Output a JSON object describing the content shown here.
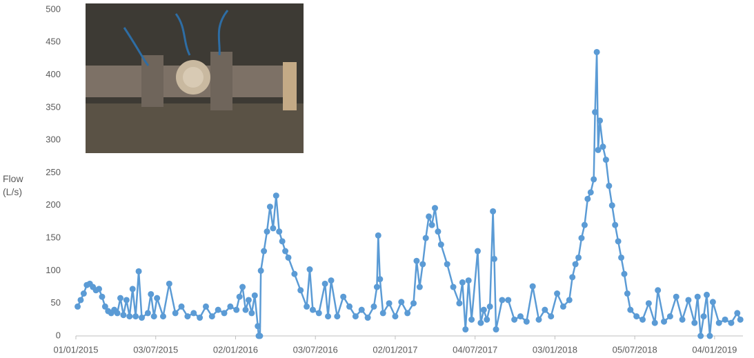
{
  "chart_data": {
    "type": "line",
    "ylabel": "Flow (L/s)",
    "color": "#5b9bd5",
    "x": [
      "05/01/2015",
      "12/01/2015",
      "19/01/2015",
      "26/01/2015",
      "02/02/2015",
      "09/02/2015",
      "16/02/2015",
      "23/02/2015",
      "02/03/2015",
      "09/03/2015",
      "16/03/2015",
      "23/03/2015",
      "30/03/2015",
      "06/04/2015",
      "13/04/2015",
      "20/04/2015",
      "27/04/2015",
      "04/05/2015",
      "11/05/2015",
      "18/05/2015",
      "25/05/2015",
      "01/06/2015",
      "15/06/2015",
      "22/06/2015",
      "29/06/2015",
      "06/07/2015",
      "20/07/2015",
      "03/08/2015",
      "17/08/2015",
      "31/08/2015",
      "14/09/2015",
      "28/09/2015",
      "12/10/2015",
      "26/10/2015",
      "09/11/2015",
      "23/11/2015",
      "07/12/2015",
      "21/12/2015",
      "04/01/2016",
      "11/01/2016",
      "18/01/2016",
      "25/01/2016",
      "01/02/2016",
      "08/02/2016",
      "15/02/2016",
      "22/02/2016",
      "24/02/2016",
      "27/02/2016",
      "29/02/2016",
      "07/03/2016",
      "14/03/2016",
      "21/03/2016",
      "28/03/2016",
      "04/04/2016",
      "11/04/2016",
      "18/04/2016",
      "25/04/2016",
      "02/05/2016",
      "16/05/2016",
      "30/05/2016",
      "13/06/2016",
      "20/06/2016",
      "27/06/2016",
      "11/07/2016",
      "25/07/2016",
      "01/08/2016",
      "08/08/2016",
      "22/08/2016",
      "05/09/2016",
      "19/09/2016",
      "03/10/2016",
      "17/10/2016",
      "31/10/2016",
      "14/11/2016",
      "21/11/2016",
      "24/11/2016",
      "28/11/2016",
      "05/12/2016",
      "19/12/2016",
      "02/01/2017",
      "16/01/2017",
      "30/01/2017",
      "13/02/2017",
      "20/02/2017",
      "27/02/2017",
      "06/03/2017",
      "13/03/2017",
      "20/03/2017",
      "27/03/2017",
      "03/04/2017",
      "10/04/2017",
      "17/04/2017",
      "01/05/2017",
      "15/05/2017",
      "29/05/2017",
      "05/06/2017",
      "12/06/2017",
      "19/06/2017",
      "26/06/2017",
      "10/07/2017",
      "17/07/2017",
      "24/07/2017",
      "31/07/2017",
      "07/08/2017",
      "14/08/2017",
      "17/08/2017",
      "21/08/2017",
      "04/09/2017",
      "18/09/2017",
      "02/10/2017",
      "16/10/2017",
      "30/10/2017",
      "13/11/2017",
      "27/11/2017",
      "11/12/2017",
      "25/12/2017",
      "08/01/2018",
      "22/01/2018",
      "05/02/2018",
      "12/02/2018",
      "19/02/2018",
      "26/02/2018",
      "05/03/2018",
      "12/03/2018",
      "19/03/2018",
      "26/03/2018",
      "02/04/2018",
      "05/04/2018",
      "09/04/2018",
      "12/04/2018",
      "16/04/2018",
      "23/04/2018",
      "30/04/2018",
      "07/05/2018",
      "14/05/2018",
      "21/05/2018",
      "28/05/2018",
      "04/06/2018",
      "11/06/2018",
      "18/06/2018",
      "25/06/2018",
      "09/07/2018",
      "23/07/2018",
      "06/08/2018",
      "20/08/2018",
      "27/08/2018",
      "10/09/2018",
      "24/09/2018",
      "08/10/2018",
      "22/10/2018",
      "05/11/2018",
      "19/11/2018",
      "26/11/2018",
      "03/12/2018",
      "10/12/2018",
      "17/12/2018",
      "24/12/2018",
      "31/12/2018",
      "14/01/2019",
      "28/01/2019",
      "11/02/2019",
      "25/02/2019",
      "04/03/2019"
    ],
    "values": [
      45,
      55,
      65,
      78,
      80,
      75,
      70,
      72,
      60,
      45,
      38,
      35,
      40,
      35,
      58,
      32,
      55,
      30,
      72,
      30,
      99,
      28,
      35,
      64,
      30,
      58,
      30,
      80,
      35,
      45,
      30,
      35,
      28,
      45,
      30,
      40,
      35,
      45,
      40,
      60,
      75,
      40,
      55,
      35,
      62,
      15,
      0,
      0,
      100,
      130,
      160,
      198,
      165,
      215,
      160,
      145,
      130,
      120,
      95,
      70,
      45,
      102,
      40,
      35,
      80,
      30,
      85,
      30,
      60,
      45,
      30,
      40,
      28,
      45,
      75,
      154,
      87,
      35,
      50,
      30,
      52,
      35,
      50,
      115,
      75,
      110,
      150,
      183,
      170,
      196,
      160,
      140,
      110,
      75,
      50,
      82,
      10,
      85,
      25,
      130,
      20,
      40,
      25,
      45,
      191,
      118,
      10,
      55,
      55,
      25,
      30,
      22,
      76,
      25,
      40,
      30,
      65,
      45,
      55,
      90,
      110,
      120,
      150,
      170,
      210,
      220,
      240,
      343,
      435,
      285,
      330,
      290,
      270,
      230,
      200,
      170,
      145,
      120,
      95,
      65,
      40,
      30,
      25,
      50,
      20,
      70,
      22,
      30,
      60,
      25,
      55,
      20,
      60,
      0,
      30,
      63,
      0,
      52,
      20,
      25,
      20,
      35,
      25
    ],
    "xlim": [
      "01/01/2015",
      "10/03/2019"
    ],
    "xticks": [
      "01/01/2015",
      "03/07/2015",
      "02/01/2016",
      "03/07/2016",
      "02/01/2017",
      "04/07/2017",
      "03/01/2018",
      "05/07/2018",
      "04/01/2019"
    ],
    "ylim": [
      0,
      500
    ],
    "yticks": [
      0,
      50,
      100,
      150,
      200,
      250,
      300,
      350,
      400,
      450,
      500
    ],
    "grid": false
  }
}
